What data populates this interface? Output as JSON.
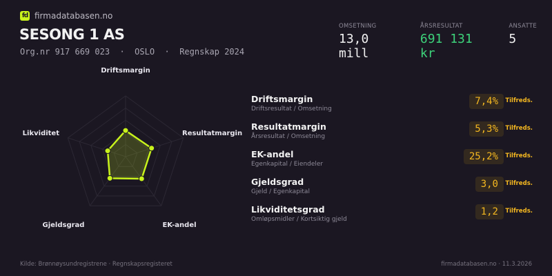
{
  "brand": {
    "logo_text": "fd",
    "name": "firmadatabasen.no",
    "accent": "#c8f21c"
  },
  "company": {
    "name": "SESONG 1 AS",
    "subtitle": "Org.nr 917 669 023  ·  OSLO  ·  Regnskap 2024"
  },
  "kpis": [
    {
      "label": "OMSETNING",
      "value": "13,0 mill"
    },
    {
      "label": "ÅRSRESULTAT",
      "value": "691 131 kr",
      "color": "#3dd27a"
    },
    {
      "label": "ANSATTE",
      "value": "5"
    }
  ],
  "radar": {
    "axes": [
      "Driftsmargin",
      "Resultatmargin",
      "EK-andel",
      "Gjeldsgrad",
      "Likviditet"
    ],
    "scores": [
      0.43,
      0.45,
      0.45,
      0.44,
      0.31
    ],
    "color": "#c8f21c"
  },
  "ratios": [
    {
      "name": "Driftsmargin",
      "desc": "Driftsresultat / Omsetning",
      "value": "7,4%",
      "status": "Tilfreds."
    },
    {
      "name": "Resultatmargin",
      "desc": "Årsresultat / Omsetning",
      "value": "5,3%",
      "status": "Tilfreds."
    },
    {
      "name": "EK-andel",
      "desc": "Egenkapital / Eiendeler",
      "value": "25,2%",
      "status": "Tilfreds."
    },
    {
      "name": "Gjeldsgrad",
      "desc": "Gjeld / Egenkapital",
      "value": "3,0",
      "status": "Tilfreds."
    },
    {
      "name": "Likviditetsgrad",
      "desc": "Omløpsmidler / Kortsiktig gjeld",
      "value": "1,2",
      "status": "Tilfreds."
    }
  ],
  "footer": {
    "source": "Kilde: Brønnøysundregistrene · Regnskapsregisteret",
    "site_date": "firmadatabasen.no · 11.3.2026"
  }
}
